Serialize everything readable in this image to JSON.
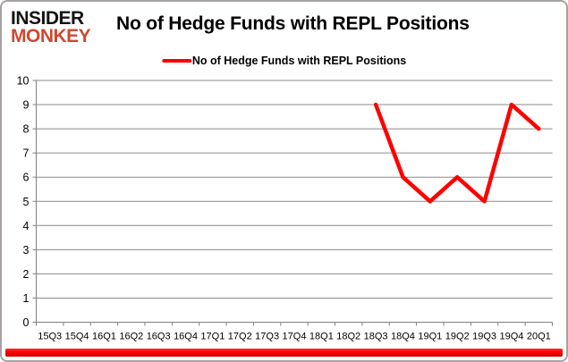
{
  "logo": {
    "line1": "INSIDER",
    "line2": "MONKEY",
    "brand_black": "#141414",
    "brand_red": "#cd4a31"
  },
  "header": {
    "title": "No of Hedge Funds with REPL Positions"
  },
  "legend": {
    "label": "No of Hedge Funds with REPL Positions",
    "swatch_color": "#fe0000",
    "position": "top"
  },
  "chart_data": {
    "type": "line",
    "title": "No of Hedge Funds with REPL Positions",
    "categories": [
      "15Q3",
      "15Q4",
      "16Q1",
      "16Q2",
      "16Q3",
      "16Q4",
      "17Q1",
      "17Q2",
      "17Q3",
      "17Q4",
      "18Q1",
      "18Q2",
      "18Q3",
      "18Q4",
      "19Q1",
      "19Q2",
      "19Q3",
      "19Q4",
      "20Q1"
    ],
    "series": [
      {
        "name": "No of Hedge Funds with REPL Positions",
        "values": [
          null,
          null,
          null,
          null,
          null,
          null,
          null,
          null,
          null,
          null,
          null,
          null,
          9,
          6,
          5,
          6,
          5,
          9,
          8
        ]
      }
    ],
    "xlabel": "",
    "ylabel": "",
    "ylim": [
      0,
      10
    ],
    "ytick_step": 1,
    "grid": "horizontal",
    "legend_position": "top",
    "colors": {
      "line": "#fe0000",
      "grid": "#8a8a8a",
      "axis": "#7f7f7f",
      "text": "#000000"
    }
  },
  "footer": {
    "accent_color": "#fe0000"
  }
}
